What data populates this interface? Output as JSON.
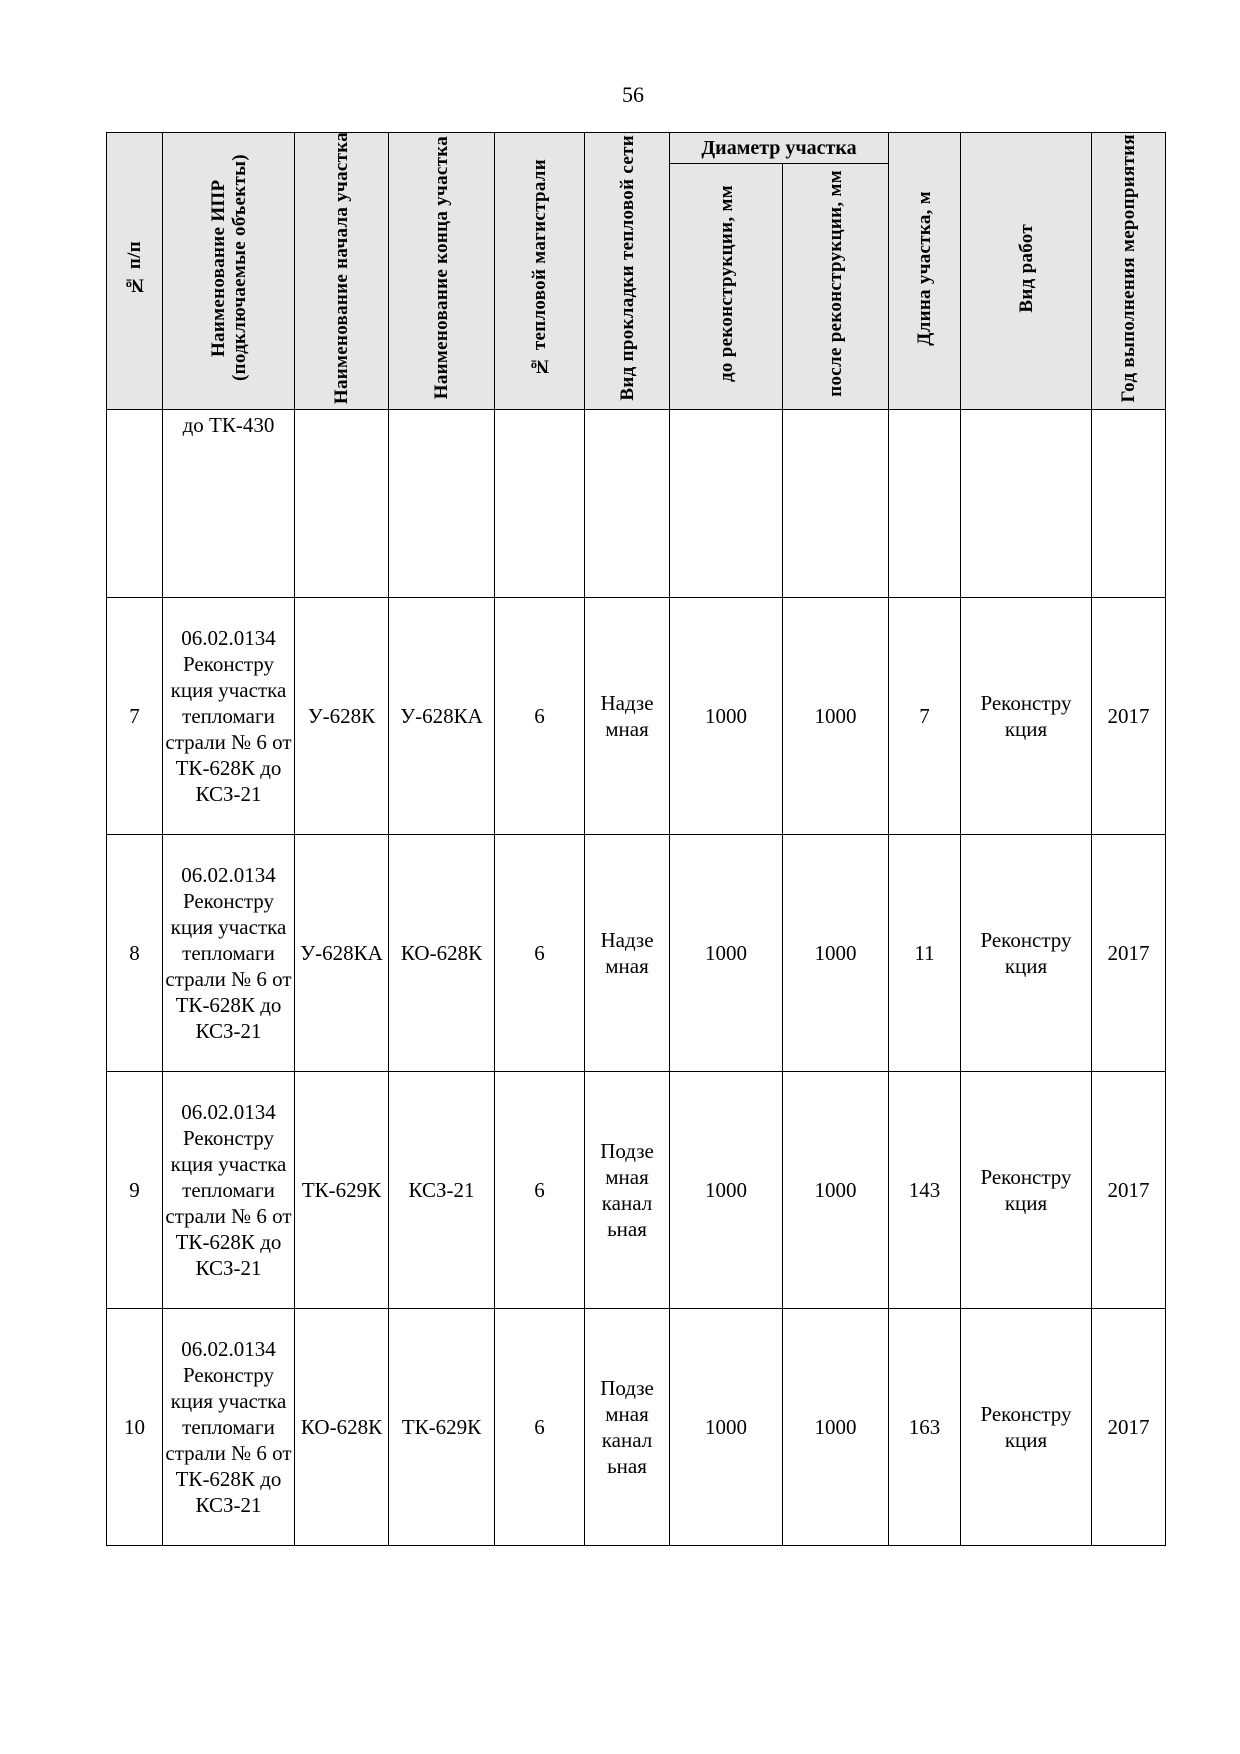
{
  "page_number": "56",
  "headers": {
    "num": "№ п/п",
    "ipr": "Наименование ИПР (подключаемые объекты)",
    "start": "Наименование начала участка",
    "end": "Наименование конца участка",
    "main": "№ тепловой магистрали",
    "laying": "Вид прокладки тепловой сети",
    "diameter_group": "Диаметр участка",
    "diam_before": "до реконструкции, мм",
    "diam_after": "после реконструкции, мм",
    "length": "Длина участка, м",
    "work": "Вид работ",
    "year": "Год выполнения мероприятия"
  },
  "continuation_row": {
    "ipr": "до ТК-430"
  },
  "rows": [
    {
      "num": "7",
      "ipr": "06.02.0134 Реконстру кция участка тепломаги страли № 6 от ТК-628К до КСЗ-21",
      "start": "У-628К",
      "end": "У-628КА",
      "main": "6",
      "laying": "Надзе мная",
      "d_before": "1000",
      "d_after": "1000",
      "length": "7",
      "work": "Реконстру кция",
      "year": "2017"
    },
    {
      "num": "8",
      "ipr": "06.02.0134 Реконстру кция участка тепломаги страли № 6 от ТК-628К до КСЗ-21",
      "start": "У-628КА",
      "end": "КО-628К",
      "main": "6",
      "laying": "Надзе мная",
      "d_before": "1000",
      "d_after": "1000",
      "length": "11",
      "work": "Реконстру кция",
      "year": "2017"
    },
    {
      "num": "9",
      "ipr": "06.02.0134 Реконстру кция участка тепломаги страли № 6 от ТК-628К до КСЗ-21",
      "start": "ТК-629К",
      "end": "КСЗ-21",
      "main": "6",
      "laying": "Подзе мная канал ьная",
      "d_before": "1000",
      "d_after": "1000",
      "length": "143",
      "work": "Реконстру кция",
      "year": "2017"
    },
    {
      "num": "10",
      "ipr": "06.02.0134 Реконстру кция участка тепломаги страли № 6 от ТК-628К до КСЗ-21",
      "start": "КО-628К",
      "end": "ТК-629К",
      "main": "6",
      "laying": "Подзе мная канал ьная",
      "d_before": "1000",
      "d_after": "1000",
      "length": "163",
      "work": "Реконстру кция",
      "year": "2017"
    }
  ]
}
